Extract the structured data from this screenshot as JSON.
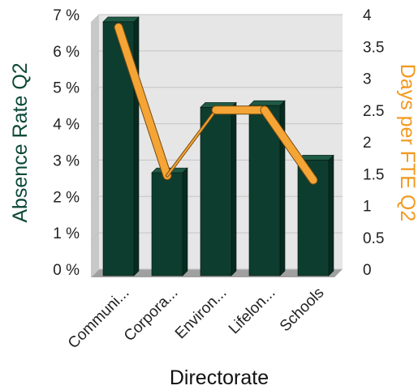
{
  "chart_data": {
    "type": "bar",
    "categories": [
      "Communi...",
      "Corpora...",
      "Environ...",
      "Lifelon...",
      "Schools"
    ],
    "series": [
      {
        "name": "Absence Rate Q2",
        "type": "bar",
        "axis": "left",
        "values": [
          6.8,
          2.65,
          4.45,
          4.5,
          3.0
        ]
      },
      {
        "name": "Days per FTE Q2",
        "type": "line",
        "axis": "right",
        "values": [
          3.8,
          1.47,
          2.5,
          2.5,
          1.4
        ]
      }
    ],
    "xlabel": "Directorate",
    "ylabel": "Absence Rate Q2",
    "y2label": "Days per FTE Q2",
    "ylim": [
      0,
      7
    ],
    "y2lim": [
      0,
      4
    ],
    "yticks": [
      "0 %",
      "1 %",
      "2 %",
      "3 %",
      "4 %",
      "5 %",
      "6 %",
      "7 %"
    ],
    "y2ticks": [
      "0",
      "0.5",
      "1",
      "1.5",
      "2",
      "2.5",
      "3",
      "3.5",
      "4"
    ],
    "grid": true,
    "colors": {
      "bar": "#0d3d2e",
      "bar_side": "#082b20",
      "bar_top": "#1f5a45",
      "line": "#f4a535",
      "left_axis_title": "#0d4a38",
      "right_axis_title": "#f29a1f",
      "wall": "#e6e6e6",
      "floor": "#a0a0a0"
    }
  }
}
